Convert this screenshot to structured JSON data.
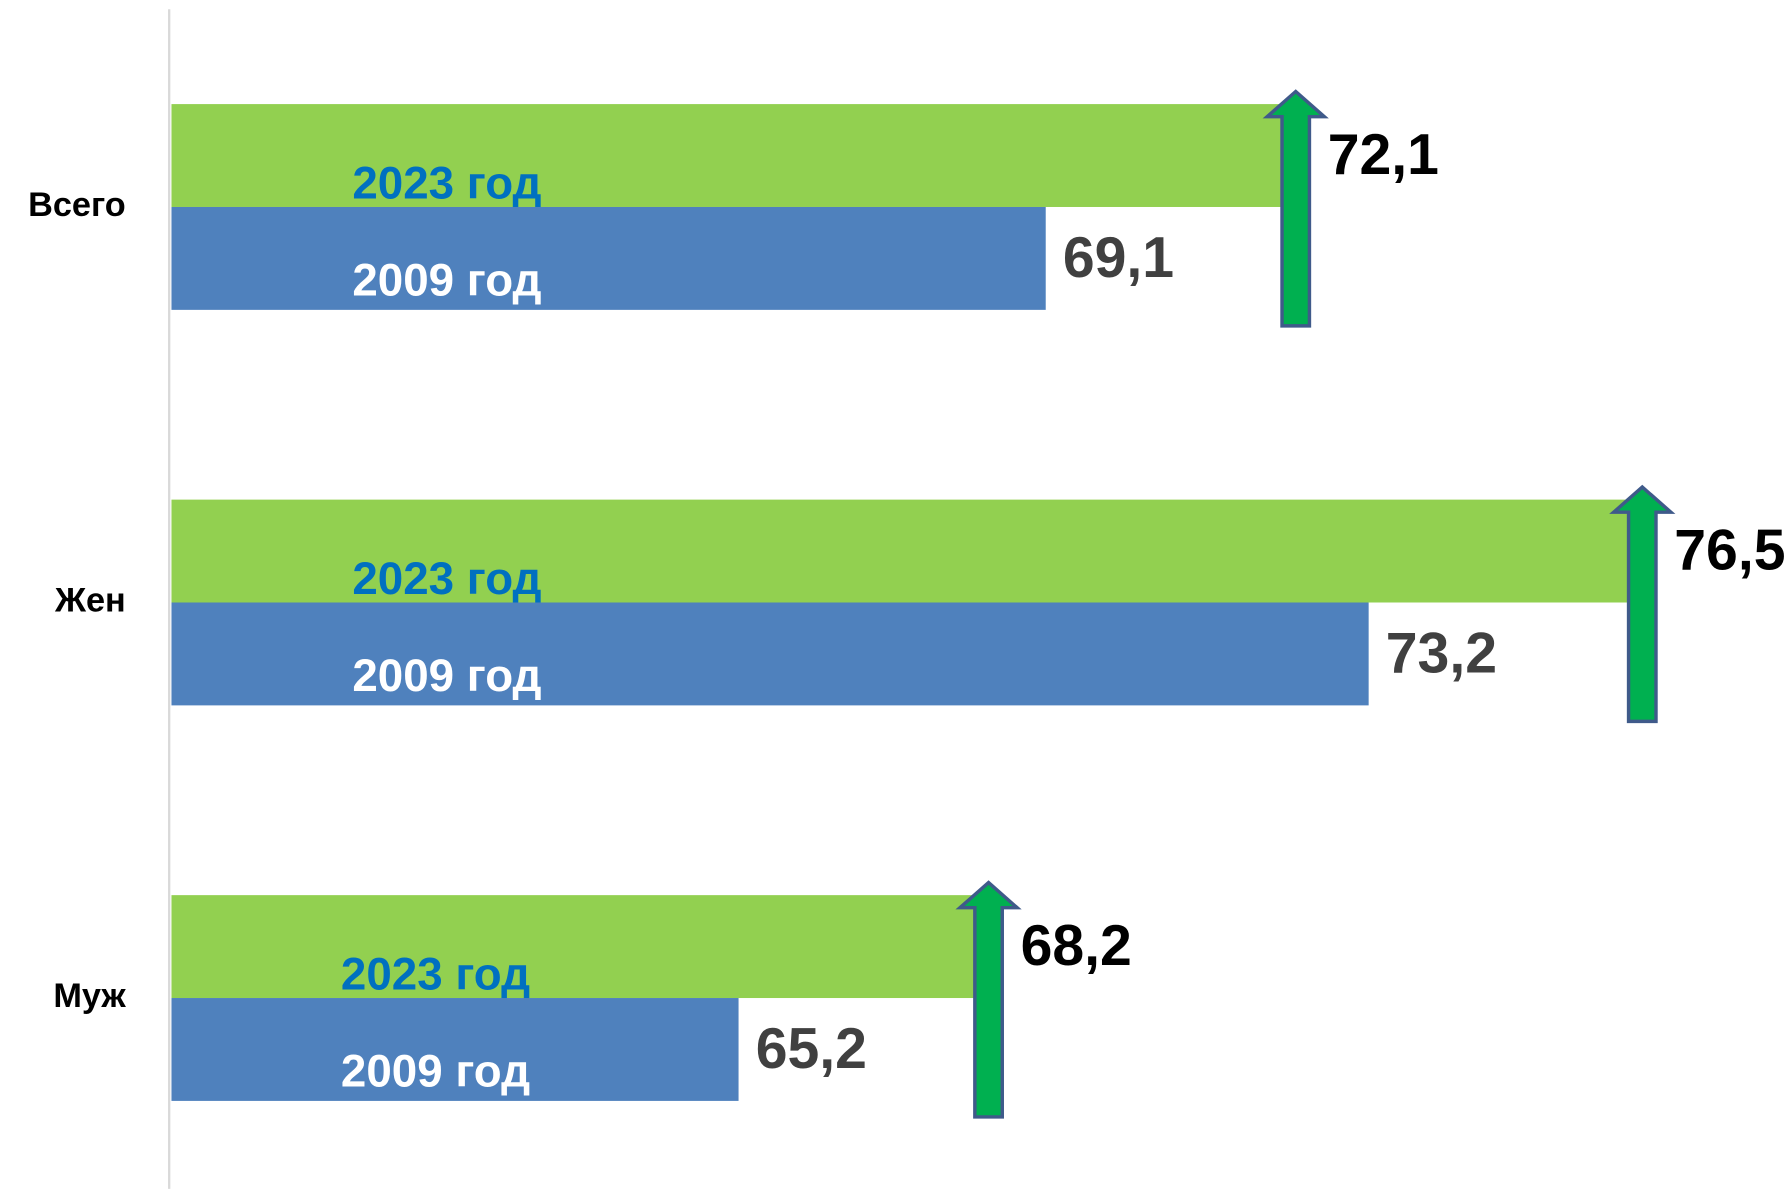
{
  "chart_data": {
    "type": "hbar",
    "categories": [
      "Всего",
      "Жен",
      "Муж"
    ],
    "series": [
      {
        "name": "2023 год",
        "color": "#92d050",
        "label_color": "#0070c0",
        "values": [
          72.1,
          76.5,
          68.2
        ],
        "value_labels": [
          "72,1",
          "76,5",
          "68,2"
        ]
      },
      {
        "name": "2009 год",
        "color": "#4f81bd",
        "label_color": "#ffffff",
        "values": [
          69.1,
          73.2,
          65.2
        ],
        "value_labels": [
          "69,1",
          "73,2",
          "65,2"
        ]
      }
    ],
    "xlim": [
      58,
      78
    ]
  }
}
